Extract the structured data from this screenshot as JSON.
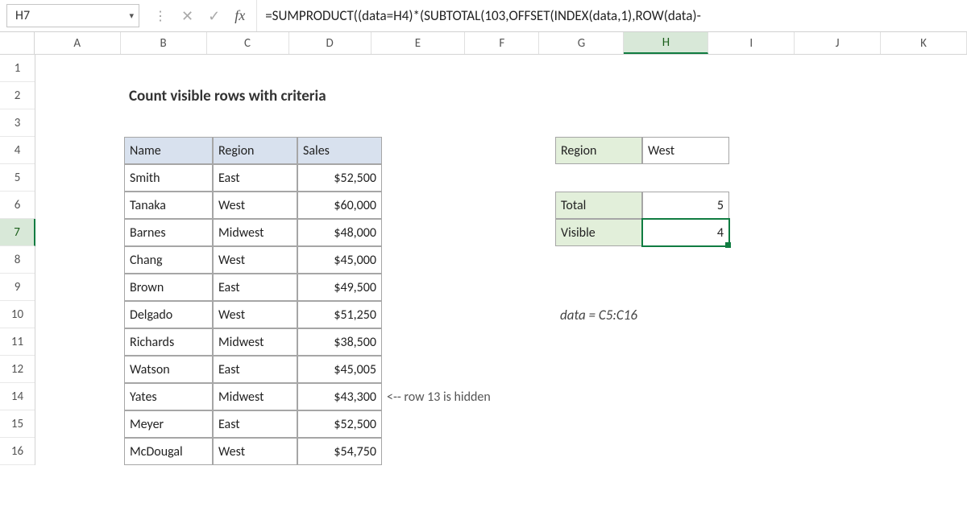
{
  "formula_bar": {
    "cell_ref": "H7",
    "formula": "=SUMPRODUCT((data=H4)*(SUBTOTAL(103,OFFSET(INDEX(data,1),ROW(data)-"
  },
  "columns": {
    "labels": [
      "A",
      "B",
      "C",
      "D",
      "E",
      "F",
      "G",
      "H",
      "I",
      "J",
      "K"
    ],
    "widths": [
      110,
      110,
      105,
      105,
      120,
      95,
      108,
      108,
      110,
      110,
      110
    ],
    "active": "H"
  },
  "rows": {
    "labels": [
      "1",
      "2",
      "3",
      "4",
      "5",
      "6",
      "7",
      "8",
      "9",
      "10",
      "11",
      "12",
      "14",
      "15",
      "16"
    ],
    "heights": [
      34,
      34,
      34,
      34,
      34,
      34,
      34,
      34,
      34,
      34,
      34,
      34,
      34,
      34,
      34
    ],
    "active": "7"
  },
  "title": "Count visible rows with criteria",
  "table": {
    "headers": [
      "Name",
      "Region",
      "Sales"
    ],
    "rows": [
      {
        "name": "Smith",
        "region": "East",
        "sales": "$52,500"
      },
      {
        "name": "Tanaka",
        "region": "West",
        "sales": "$60,000"
      },
      {
        "name": "Barnes",
        "region": "Midwest",
        "sales": "$48,000"
      },
      {
        "name": "Chang",
        "region": "West",
        "sales": "$45,000"
      },
      {
        "name": "Brown",
        "region": "East",
        "sales": "$49,500"
      },
      {
        "name": "Delgado",
        "region": "West",
        "sales": "$51,250"
      },
      {
        "name": "Richards",
        "region": "Midwest",
        "sales": "$38,500"
      },
      {
        "name": "Watson",
        "region": "East",
        "sales": "$45,005"
      },
      {
        "name": "Yates",
        "region": "Midwest",
        "sales": "$43,300"
      },
      {
        "name": "Meyer",
        "region": "East",
        "sales": "$52,500"
      },
      {
        "name": "McDougal",
        "region": "West",
        "sales": "$54,750"
      }
    ]
  },
  "summary": {
    "region_label": "Region",
    "region_value": "West",
    "total_label": "Total",
    "total_value": "5",
    "visible_label": "Visible",
    "visible_value": "4"
  },
  "notes": {
    "hidden_row": "<-- row 13 is hidden",
    "named_range": "data = C5:C16"
  },
  "colors": {
    "header_fill": "#d8e1ee",
    "summary_fill": "#e2efda",
    "border": "#a6a6a6",
    "active_border": "#107c41"
  }
}
